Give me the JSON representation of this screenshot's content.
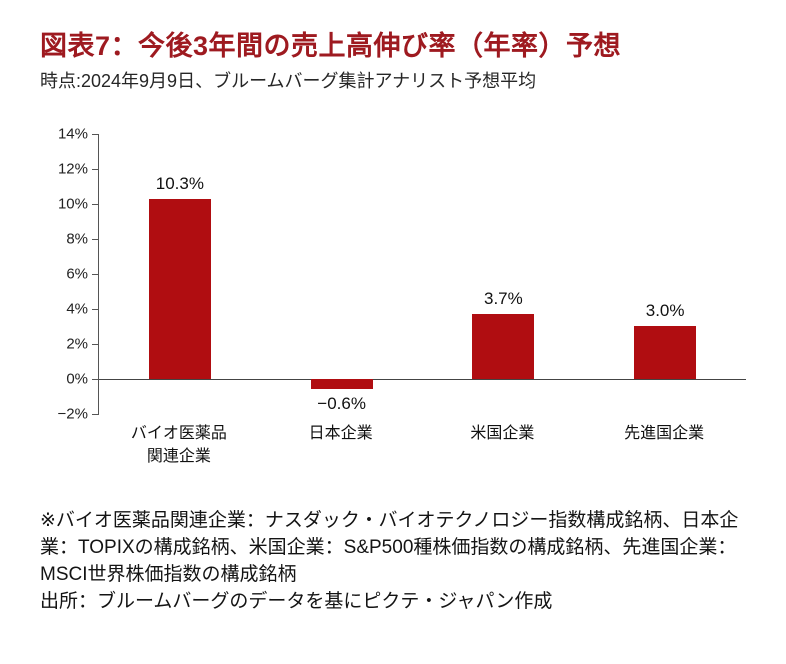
{
  "header": {
    "title": "図表7：今後3年間の売上高伸び率（年率）予想",
    "subtitle": "時点:2024年9月9日、ブルームバーグ集計アナリスト予想平均"
  },
  "chart_data": {
    "type": "bar",
    "title": "図表7：今後3年間の売上高伸び率（年率）予想",
    "subtitle": "時点:2024年9月9日、ブルームバーグ集計アナリスト予想平均",
    "categories": [
      "バイオ医薬品\n関連企業",
      "日本企業",
      "米国企業",
      "先進国企業"
    ],
    "values": [
      10.3,
      -0.6,
      3.7,
      3.0
    ],
    "value_labels": [
      "10.3%",
      "−0.6%",
      "3.7%",
      "3.0%"
    ],
    "unit": "%",
    "ylim": [
      -2,
      14
    ],
    "yticks": [
      {
        "value": 14,
        "label": "14%"
      },
      {
        "value": 12,
        "label": "12%"
      },
      {
        "value": 10,
        "label": "10%"
      },
      {
        "value": 8,
        "label": "8%"
      },
      {
        "value": 6,
        "label": "6%"
      },
      {
        "value": 4,
        "label": "4%"
      },
      {
        "value": 2,
        "label": "2%"
      },
      {
        "value": 0,
        "label": "0%"
      },
      {
        "value": -2,
        "label": "−2%"
      }
    ],
    "grid": false,
    "legend": "none",
    "bar_color": "#b00d11"
  },
  "footer": {
    "note": "※バイオ医薬品関連企業：ナスダック・バイオテクノロジー指数構成銘柄、日本企業：TOPIXの構成銘柄、米国企業：S&P500種株価指数の構成銘柄、先進国企業：MSCI世界株価指数の構成銘柄",
    "source": "出所：ブルームバーグのデータを基にピクテ・ジャパン作成"
  },
  "colors": {
    "accent": "#b00d11",
    "title_color": "#9e1a20",
    "text": "#1a1a1a"
  }
}
